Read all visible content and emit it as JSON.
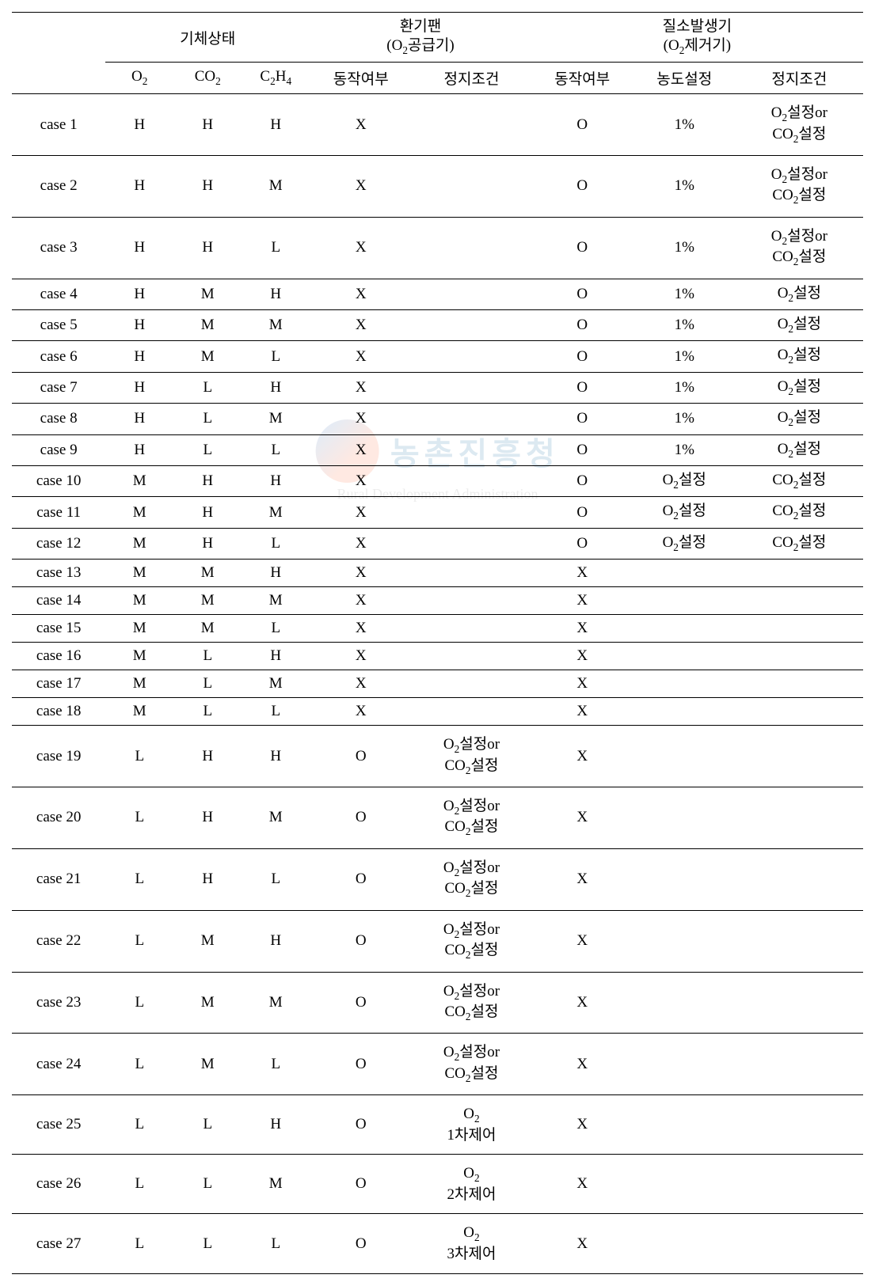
{
  "table": {
    "header": {
      "group1": {
        "label": "기체상태",
        "sub": [
          "O<sub>2</sub>",
          "CO<sub>2</sub>",
          "C<sub>2</sub>H<sub>4</sub>"
        ]
      },
      "group2": {
        "label_line1": "환기팬",
        "label_line2": "(O<sub>2</sub>공급기)",
        "sub": [
          "동작여부",
          "정지조건"
        ]
      },
      "group3": {
        "label_line1": "질소발생기",
        "label_line2": "(O<sub>2</sub>제거기)",
        "sub": [
          "동작여부",
          "농도설정",
          "정지조건"
        ]
      }
    },
    "or_setting": "O<sub>2</sub>설정or<br>CO<sub>2</sub>설정",
    "o2_setting": "O<sub>2</sub>설정",
    "co2_setting": "CO<sub>2</sub>설정",
    "rows": [
      {
        "case": "case 1",
        "o2": "H",
        "co2": "H",
        "c2h4": "H",
        "fan_op": "X",
        "fan_stop": "",
        "n2_op": "O",
        "n2_set": "1%",
        "n2_stop": "@or",
        "tall": true
      },
      {
        "case": "case 2",
        "o2": "H",
        "co2": "H",
        "c2h4": "M",
        "fan_op": "X",
        "fan_stop": "",
        "n2_op": "O",
        "n2_set": "1%",
        "n2_stop": "@or",
        "tall": true
      },
      {
        "case": "case 3",
        "o2": "H",
        "co2": "H",
        "c2h4": "L",
        "fan_op": "X",
        "fan_stop": "",
        "n2_op": "O",
        "n2_set": "1%",
        "n2_stop": "@or",
        "tall": true
      },
      {
        "case": "case 4",
        "o2": "H",
        "co2": "M",
        "c2h4": "H",
        "fan_op": "X",
        "fan_stop": "",
        "n2_op": "O",
        "n2_set": "1%",
        "n2_stop": "@o2"
      },
      {
        "case": "case 5",
        "o2": "H",
        "co2": "M",
        "c2h4": "M",
        "fan_op": "X",
        "fan_stop": "",
        "n2_op": "O",
        "n2_set": "1%",
        "n2_stop": "@o2"
      },
      {
        "case": "case 6",
        "o2": "H",
        "co2": "M",
        "c2h4": "L",
        "fan_op": "X",
        "fan_stop": "",
        "n2_op": "O",
        "n2_set": "1%",
        "n2_stop": "@o2"
      },
      {
        "case": "case 7",
        "o2": "H",
        "co2": "L",
        "c2h4": "H",
        "fan_op": "X",
        "fan_stop": "",
        "n2_op": "O",
        "n2_set": "1%",
        "n2_stop": "@o2"
      },
      {
        "case": "case 8",
        "o2": "H",
        "co2": "L",
        "c2h4": "M",
        "fan_op": "X",
        "fan_stop": "",
        "n2_op": "O",
        "n2_set": "1%",
        "n2_stop": "@o2"
      },
      {
        "case": "case 9",
        "o2": "H",
        "co2": "L",
        "c2h4": "L",
        "fan_op": "X",
        "fan_stop": "",
        "n2_op": "O",
        "n2_set": "1%",
        "n2_stop": "@o2"
      },
      {
        "case": "case 10",
        "o2": "M",
        "co2": "H",
        "c2h4": "H",
        "fan_op": "X",
        "fan_stop": "",
        "n2_op": "O",
        "n2_set": "@o2",
        "n2_stop": "@co2"
      },
      {
        "case": "case 11",
        "o2": "M",
        "co2": "H",
        "c2h4": "M",
        "fan_op": "X",
        "fan_stop": "",
        "n2_op": "O",
        "n2_set": "@o2",
        "n2_stop": "@co2"
      },
      {
        "case": "case 12",
        "o2": "M",
        "co2": "H",
        "c2h4": "L",
        "fan_op": "X",
        "fan_stop": "",
        "n2_op": "O",
        "n2_set": "@o2",
        "n2_stop": "@co2"
      },
      {
        "case": "case 13",
        "o2": "M",
        "co2": "M",
        "c2h4": "H",
        "fan_op": "X",
        "fan_stop": "",
        "n2_op": "X",
        "n2_set": "",
        "n2_stop": ""
      },
      {
        "case": "case 14",
        "o2": "M",
        "co2": "M",
        "c2h4": "M",
        "fan_op": "X",
        "fan_stop": "",
        "n2_op": "X",
        "n2_set": "",
        "n2_stop": ""
      },
      {
        "case": "case 15",
        "o2": "M",
        "co2": "M",
        "c2h4": "L",
        "fan_op": "X",
        "fan_stop": "",
        "n2_op": "X",
        "n2_set": "",
        "n2_stop": ""
      },
      {
        "case": "case 16",
        "o2": "M",
        "co2": "L",
        "c2h4": "H",
        "fan_op": "X",
        "fan_stop": "",
        "n2_op": "X",
        "n2_set": "",
        "n2_stop": ""
      },
      {
        "case": "case 17",
        "o2": "M",
        "co2": "L",
        "c2h4": "M",
        "fan_op": "X",
        "fan_stop": "",
        "n2_op": "X",
        "n2_set": "",
        "n2_stop": ""
      },
      {
        "case": "case 18",
        "o2": "M",
        "co2": "L",
        "c2h4": "L",
        "fan_op": "X",
        "fan_stop": "",
        "n2_op": "X",
        "n2_set": "",
        "n2_stop": ""
      },
      {
        "case": "case 19",
        "o2": "L",
        "co2": "H",
        "c2h4": "H",
        "fan_op": "O",
        "fan_stop": "@or",
        "n2_op": "X",
        "n2_set": "",
        "n2_stop": "",
        "tall": true
      },
      {
        "case": "case 20",
        "o2": "L",
        "co2": "H",
        "c2h4": "M",
        "fan_op": "O",
        "fan_stop": "@or",
        "n2_op": "X",
        "n2_set": "",
        "n2_stop": "",
        "tall": true
      },
      {
        "case": "case 21",
        "o2": "L",
        "co2": "H",
        "c2h4": "L",
        "fan_op": "O",
        "fan_stop": "@or",
        "n2_op": "X",
        "n2_set": "",
        "n2_stop": "",
        "tall": true
      },
      {
        "case": "case 22",
        "o2": "L",
        "co2": "M",
        "c2h4": "H",
        "fan_op": "O",
        "fan_stop": "@or",
        "n2_op": "X",
        "n2_set": "",
        "n2_stop": "",
        "tall": true
      },
      {
        "case": "case 23",
        "o2": "L",
        "co2": "M",
        "c2h4": "M",
        "fan_op": "O",
        "fan_stop": "@or",
        "n2_op": "X",
        "n2_set": "",
        "n2_stop": "",
        "tall": true
      },
      {
        "case": "case 24",
        "o2": "L",
        "co2": "M",
        "c2h4": "L",
        "fan_op": "O",
        "fan_stop": "@or",
        "n2_op": "X",
        "n2_set": "",
        "n2_stop": "",
        "tall": true
      },
      {
        "case": "case 25",
        "o2": "L",
        "co2": "L",
        "c2h4": "H",
        "fan_op": "O",
        "fan_stop": "O<sub>2</sub><br>1차제어",
        "n2_op": "X",
        "n2_set": "",
        "n2_stop": "",
        "tall": true
      },
      {
        "case": "case 26",
        "o2": "L",
        "co2": "L",
        "c2h4": "M",
        "fan_op": "O",
        "fan_stop": "O<sub>2</sub><br>2차제어",
        "n2_op": "X",
        "n2_set": "",
        "n2_stop": "",
        "tall": true
      },
      {
        "case": "case 27",
        "o2": "L",
        "co2": "L",
        "c2h4": "L",
        "fan_op": "O",
        "fan_stop": "O<sub>2</sub><br>3차제어",
        "n2_op": "X",
        "n2_set": "",
        "n2_stop": "",
        "tall": true
      }
    ]
  },
  "watermark": {
    "ko": "농촌진흥청",
    "en": "Rural Development Administration"
  }
}
